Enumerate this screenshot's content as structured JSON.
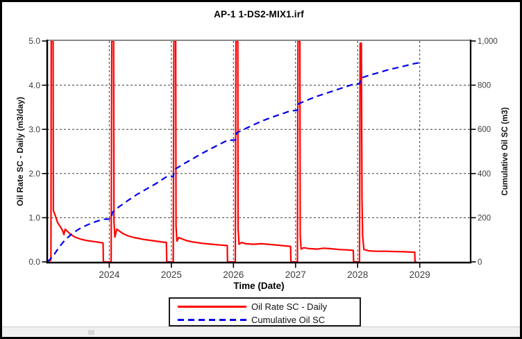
{
  "title": "AP-1 1-DS2-MIX1.irf",
  "chart_data": {
    "type": "line",
    "title": "AP-1 1-DS2-MIX1.irf",
    "xlabel": "Time (Date)",
    "ylabel_left": "Oil Rate SC - Daily (m3/day)",
    "ylabel_right": "Cumulative Oil SC (m3)",
    "x_range": [
      2023.0,
      2029.82
    ],
    "x_ticks": [
      2024,
      2025,
      2026,
      2027,
      2028,
      2029
    ],
    "y_left": {
      "range": [
        0,
        5
      ],
      "ticks": [
        0,
        1,
        2,
        3,
        4,
        5
      ],
      "tick_labels": [
        "0.0",
        "1.0",
        "2.0",
        "3.0",
        "4.0",
        "5.0"
      ]
    },
    "y_right": {
      "range": [
        0,
        1000
      ],
      "ticks": [
        0,
        200,
        400,
        600,
        800,
        1000
      ],
      "tick_labels": [
        "0",
        "200",
        "400",
        "600",
        "800",
        "1,000"
      ]
    },
    "grid": {
      "h_values": [
        1,
        2,
        3,
        4
      ],
      "v_years": [
        2024,
        2025,
        2026,
        2027,
        2028,
        2029
      ],
      "dash": "3,3"
    },
    "style": {
      "grid_color": "#3a3a3a",
      "axis_color": "#000000",
      "top_border_color": "#888888",
      "tick_label_color": "#3c3c3c",
      "plot_bg": "#ffffff"
    },
    "legend": {
      "position": "bottom-center",
      "entries": [
        "Oil Rate SC - Daily",
        "Cumulative Oil SC"
      ]
    },
    "series": [
      {
        "name": "Oil Rate SC - Daily",
        "axis": "left",
        "color": "#ff0000",
        "dash": "solid",
        "points": [
          [
            2023.0,
            0.03
          ],
          [
            2023.055,
            0.03
          ],
          [
            2023.06,
            0.12
          ],
          [
            2023.065,
            5.0
          ],
          [
            2023.095,
            5.0
          ],
          [
            2023.1,
            1.16
          ],
          [
            2023.13,
            1.05
          ],
          [
            2023.17,
            0.88
          ],
          [
            2023.21,
            0.8
          ],
          [
            2023.25,
            0.7
          ],
          [
            2023.27,
            0.62
          ],
          [
            2023.29,
            0.74
          ],
          [
            2023.32,
            0.7
          ],
          [
            2023.37,
            0.63
          ],
          [
            2023.45,
            0.56
          ],
          [
            2023.55,
            0.51
          ],
          [
            2023.65,
            0.48
          ],
          [
            2023.75,
            0.46
          ],
          [
            2023.85,
            0.44
          ],
          [
            2023.9,
            0.43
          ],
          [
            2023.905,
            0.0
          ],
          [
            2024.03,
            0.0
          ],
          [
            2024.04,
            5.0
          ],
          [
            2024.07,
            5.0
          ],
          [
            2024.075,
            0.92
          ],
          [
            2024.09,
            0.56
          ],
          [
            2024.12,
            0.74
          ],
          [
            2024.16,
            0.7
          ],
          [
            2024.22,
            0.64
          ],
          [
            2024.3,
            0.59
          ],
          [
            2024.4,
            0.55
          ],
          [
            2024.55,
            0.51
          ],
          [
            2024.7,
            0.48
          ],
          [
            2024.85,
            0.45
          ],
          [
            2024.92,
            0.44
          ],
          [
            2024.925,
            0.0
          ],
          [
            2025.03,
            0.0
          ],
          [
            2025.04,
            5.0
          ],
          [
            2025.07,
            5.0
          ],
          [
            2025.075,
            0.8
          ],
          [
            2025.09,
            0.47
          ],
          [
            2025.12,
            0.55
          ],
          [
            2025.17,
            0.52
          ],
          [
            2025.25,
            0.48
          ],
          [
            2025.35,
            0.45
          ],
          [
            2025.5,
            0.42
          ],
          [
            2025.65,
            0.4
          ],
          [
            2025.8,
            0.38
          ],
          [
            2025.9,
            0.37
          ],
          [
            2025.905,
            0.0
          ],
          [
            2026.03,
            0.0
          ],
          [
            2026.04,
            5.0
          ],
          [
            2026.07,
            5.0
          ],
          [
            2026.075,
            0.75
          ],
          [
            2026.09,
            0.4
          ],
          [
            2026.13,
            0.44
          ],
          [
            2026.2,
            0.41
          ],
          [
            2026.32,
            0.4
          ],
          [
            2026.45,
            0.41
          ],
          [
            2026.55,
            0.4
          ],
          [
            2026.7,
            0.38
          ],
          [
            2026.85,
            0.36
          ],
          [
            2026.92,
            0.35
          ],
          [
            2026.925,
            0.0
          ],
          [
            2027.03,
            0.0
          ],
          [
            2027.04,
            5.0
          ],
          [
            2027.07,
            5.0
          ],
          [
            2027.075,
            0.6
          ],
          [
            2027.09,
            0.29
          ],
          [
            2027.13,
            0.32
          ],
          [
            2027.22,
            0.3
          ],
          [
            2027.35,
            0.29
          ],
          [
            2027.45,
            0.31
          ],
          [
            2027.55,
            0.3
          ],
          [
            2027.7,
            0.28
          ],
          [
            2027.85,
            0.27
          ],
          [
            2027.93,
            0.26
          ],
          [
            2027.935,
            0.0
          ],
          [
            2028.03,
            0.0
          ],
          [
            2028.04,
            4.95
          ],
          [
            2028.06,
            4.95
          ],
          [
            2028.07,
            1.4
          ],
          [
            2028.08,
            0.6
          ],
          [
            2028.1,
            0.28
          ],
          [
            2028.18,
            0.25
          ],
          [
            2028.3,
            0.24
          ],
          [
            2028.45,
            0.24
          ],
          [
            2028.6,
            0.235
          ],
          [
            2028.75,
            0.23
          ],
          [
            2028.88,
            0.22
          ],
          [
            2028.92,
            0.22
          ],
          [
            2028.925,
            0.0
          ],
          [
            2028.95,
            0.0
          ]
        ]
      },
      {
        "name": "Cumulative Oil SC",
        "axis": "right",
        "color": "#0000f0",
        "dash": "dashed",
        "points": [
          [
            2023.0,
            0
          ],
          [
            2023.04,
            10
          ],
          [
            2023.1,
            28
          ],
          [
            2023.18,
            62
          ],
          [
            2023.28,
            97
          ],
          [
            2023.4,
            128
          ],
          [
            2023.52,
            150
          ],
          [
            2023.65,
            168
          ],
          [
            2023.78,
            182
          ],
          [
            2023.9,
            193
          ],
          [
            2024.03,
            194
          ],
          [
            2024.05,
            224
          ],
          [
            2024.15,
            248
          ],
          [
            2024.3,
            278
          ],
          [
            2024.45,
            306
          ],
          [
            2024.6,
            330
          ],
          [
            2024.75,
            354
          ],
          [
            2024.92,
            385
          ],
          [
            2025.03,
            386
          ],
          [
            2025.05,
            418
          ],
          [
            2025.2,
            444
          ],
          [
            2025.35,
            468
          ],
          [
            2025.5,
            492
          ],
          [
            2025.65,
            514
          ],
          [
            2025.8,
            536
          ],
          [
            2025.9,
            550
          ],
          [
            2026.03,
            552
          ],
          [
            2026.05,
            584
          ],
          [
            2026.2,
            604
          ],
          [
            2026.35,
            624
          ],
          [
            2026.5,
            642
          ],
          [
            2026.65,
            658
          ],
          [
            2026.8,
            672
          ],
          [
            2026.92,
            684
          ],
          [
            2027.03,
            686
          ],
          [
            2027.05,
            716
          ],
          [
            2027.2,
            734
          ],
          [
            2027.35,
            750
          ],
          [
            2027.5,
            764
          ],
          [
            2027.65,
            778
          ],
          [
            2027.8,
            792
          ],
          [
            2027.93,
            804
          ],
          [
            2028.03,
            806
          ],
          [
            2028.05,
            832
          ],
          [
            2028.2,
            846
          ],
          [
            2028.35,
            858
          ],
          [
            2028.5,
            870
          ],
          [
            2028.65,
            880
          ],
          [
            2028.8,
            890
          ],
          [
            2028.92,
            898
          ],
          [
            2029.0,
            902
          ]
        ]
      }
    ]
  }
}
